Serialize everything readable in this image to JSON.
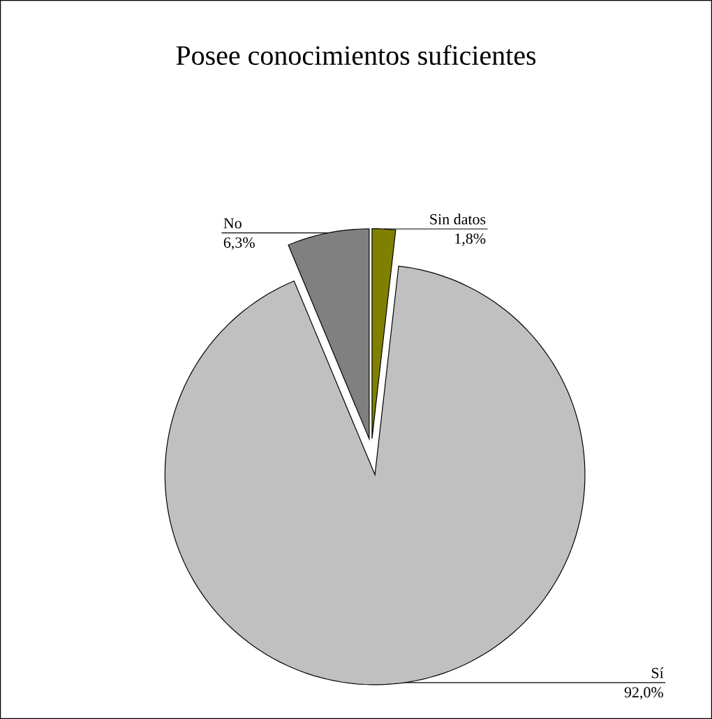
{
  "chart_data": {
    "type": "pie",
    "title": "Posee conocimientos suficientes",
    "categories": [
      "Sin datos",
      "Sí",
      "No"
    ],
    "values": [
      1.8,
      92.0,
      6.3
    ],
    "colors": [
      "#808000",
      "#c0c0c0",
      "#808080"
    ],
    "value_labels": [
      "1,8%",
      "92,0%",
      "6,3%"
    ]
  }
}
